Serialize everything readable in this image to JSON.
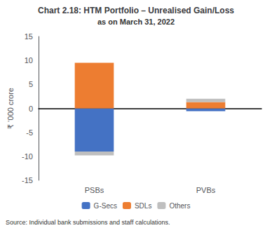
{
  "chart_data": {
    "type": "bar",
    "stacked": true,
    "title": "Chart 2.18: HTM Portfolio – Unrealised Gain/Loss",
    "subtitle": "as on March 31, 2022",
    "ylabel": "₹ ‘000 crore",
    "categories": [
      "PSBs",
      "PVBs"
    ],
    "series": [
      {
        "name": "G-Secs",
        "color": "#4472C4",
        "values": [
          -9.0,
          -0.6
        ]
      },
      {
        "name": "SDLs",
        "color": "#ED7D31",
        "values": [
          9.5,
          1.3
        ]
      },
      {
        "name": "Others",
        "color": "#BFBFBF",
        "values": [
          -0.8,
          0.7
        ]
      }
    ],
    "ylim": [
      -15,
      15
    ],
    "yticks": [
      -15,
      -10,
      -5,
      0,
      5,
      10,
      15
    ],
    "grid": false,
    "legend": "bottom",
    "annotations": [
      "Source: Individual bank submissions and staff calculations."
    ]
  }
}
